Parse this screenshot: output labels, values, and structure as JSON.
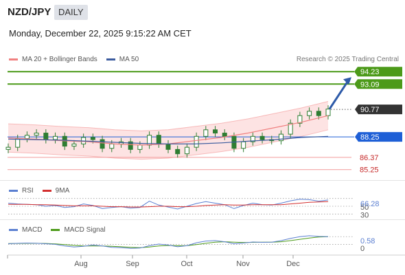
{
  "header": {
    "pair": "NZD/JPY",
    "timeframe": "DAILY",
    "datetime": "Monday, December 22, 2025 9:15:22 AM CET"
  },
  "legend": {
    "ma20_label": "MA 20 + Bollinger Bands",
    "ma50_label": "MA 50",
    "credit": "Research © 2025 Trading Central"
  },
  "colors": {
    "ma20": "#f08080",
    "ma50": "#3b5b9e",
    "bollinger_fill": "#fde3e3",
    "candle": "#2e7d32",
    "resistance": "#4c9a19",
    "pivot": "#1e5fd6",
    "last": "#333333",
    "support": "#f29a9a",
    "rsi": "#5b7fd1",
    "rsi_ma": "#d32f2f",
    "macd": "#5b7fd1",
    "macd_signal": "#4c9a19"
  },
  "chart_data": [
    {
      "type": "line",
      "panel": "price",
      "y_range": [
        84.6,
        95.0
      ],
      "x_axis_labels": [
        "Aug",
        "Sep",
        "Oct",
        "Nov",
        "Dec"
      ],
      "series": [
        {
          "name": "MA 20 + Bollinger Bands",
          "values": [
            88.15,
            88.05,
            87.9,
            87.8,
            87.6,
            87.5,
            87.6,
            87.9,
            88.2,
            88.6,
            89.1,
            89.6,
            90.2
          ]
        },
        {
          "name": "MA 50",
          "values": [
            88.05,
            88.0,
            87.95,
            87.85,
            87.75,
            87.65,
            87.6,
            87.6,
            87.7,
            87.85,
            88.0,
            88.2,
            88.3
          ]
        }
      ],
      "close": [
        87.3,
        88.1,
        88.4,
        88.6,
        88.0,
        88.3,
        87.4,
        87.6,
        88.2,
        88.0,
        87.2,
        87.6,
        87.8,
        87.1,
        87.5,
        88.4,
        87.6,
        87.1,
        86.7,
        87.3,
        88.3,
        88.9,
        88.6,
        88.3,
        87.2,
        87.8,
        88.3,
        88.0,
        87.9,
        88.5,
        89.5,
        90.2,
        90.6,
        90.2,
        90.8
      ],
      "annotations": [
        {
          "label": "94.23",
          "value": 94.23,
          "kind": "resistance"
        },
        {
          "label": "93.09",
          "value": 93.09,
          "kind": "resistance"
        },
        {
          "label": "90.77",
          "value": 90.77,
          "kind": "last"
        },
        {
          "label": "88.25",
          "value": 88.25,
          "kind": "pivot"
        },
        {
          "label": "86.37",
          "value": 86.37,
          "kind": "support"
        },
        {
          "label": "85.25",
          "value": 85.25,
          "kind": "support"
        }
      ]
    },
    {
      "type": "line",
      "panel": "rsi",
      "legend": [
        "RSI",
        "9MA"
      ],
      "y_range": [
        20,
        80
      ],
      "y_ticks": [
        "50",
        "30"
      ],
      "current_label": "66.28",
      "series": [
        {
          "name": "RSI",
          "values": [
            58,
            56,
            55,
            54,
            50,
            52,
            47,
            49,
            56,
            52,
            44,
            47,
            49,
            45,
            47,
            63,
            53,
            48,
            43,
            50,
            57,
            62,
            58,
            54,
            44,
            52,
            58,
            54,
            53,
            58,
            64,
            68,
            67,
            63,
            66
          ]
        },
        {
          "name": "9MA",
          "values": [
            55,
            55,
            55,
            54,
            54,
            53,
            52,
            51,
            51,
            51,
            50,
            49,
            49,
            48,
            48,
            49,
            50,
            50,
            49,
            49,
            50,
            52,
            53,
            54,
            53,
            53,
            54,
            54,
            54,
            54,
            56,
            58,
            60,
            61,
            62
          ]
        }
      ]
    },
    {
      "type": "line",
      "panel": "macd",
      "legend": [
        "MACD",
        "MACD Signal"
      ],
      "y_range": [
        -0.6,
        0.8
      ],
      "y_ticks": [
        "0"
      ],
      "current_label": "0.58",
      "series": [
        {
          "name": "MACD",
          "values": [
            0.05,
            0.08,
            0.1,
            0.08,
            0.05,
            0.0,
            -0.12,
            -0.2,
            -0.15,
            -0.05,
            -0.12,
            -0.22,
            -0.25,
            -0.3,
            -0.28,
            -0.1,
            0.02,
            -0.05,
            -0.18,
            -0.1,
            0.12,
            0.25,
            0.28,
            0.2,
            0.05,
            0.1,
            0.18,
            0.15,
            0.16,
            0.28,
            0.45,
            0.58,
            0.65,
            0.6,
            0.58
          ]
        },
        {
          "name": "MACD Signal",
          "values": [
            0.06,
            0.07,
            0.08,
            0.08,
            0.07,
            0.04,
            -0.02,
            -0.08,
            -0.12,
            -0.12,
            -0.12,
            -0.15,
            -0.18,
            -0.22,
            -0.25,
            -0.2,
            -0.12,
            -0.08,
            -0.1,
            -0.1,
            -0.02,
            0.08,
            0.16,
            0.2,
            0.16,
            0.14,
            0.15,
            0.16,
            0.16,
            0.2,
            0.28,
            0.38,
            0.48,
            0.55,
            0.58
          ]
        }
      ]
    }
  ]
}
